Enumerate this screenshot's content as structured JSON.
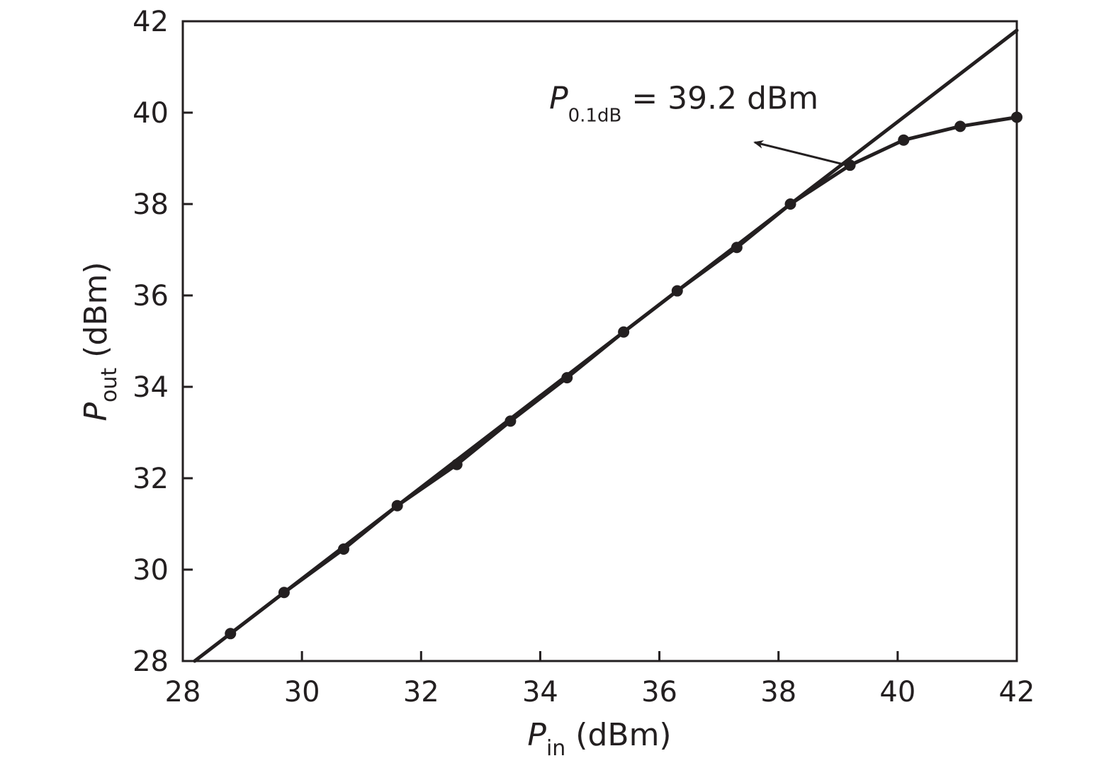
{
  "chart_data": {
    "type": "line",
    "xlabel": {
      "var": "P",
      "sub": "in",
      "unit": " (dBm)"
    },
    "ylabel": {
      "var": "P",
      "sub": "out",
      "unit": " (dBm)"
    },
    "xlim": [
      28,
      42
    ],
    "ylim": [
      28,
      42
    ],
    "xticks": [
      "28",
      "30",
      "32",
      "34",
      "36",
      "38",
      "40",
      "42"
    ],
    "yticks": [
      "28",
      "30",
      "32",
      "34",
      "36",
      "38",
      "40",
      "42"
    ],
    "grid": false,
    "series": [
      {
        "kind": "reference-line",
        "x": [
          28.2,
          42.0
        ],
        "y": [
          28.0,
          41.8
        ]
      },
      {
        "kind": "measured",
        "markers": true,
        "x": [
          28.8,
          29.7,
          30.7,
          31.6,
          32.6,
          33.5,
          34.45,
          35.4,
          36.3,
          37.3,
          38.2,
          39.2,
          40.1,
          41.05,
          42.0
        ],
        "y": [
          28.6,
          29.5,
          30.45,
          31.4,
          32.3,
          33.25,
          34.2,
          35.2,
          36.1,
          37.05,
          38.0,
          38.85,
          39.4,
          39.7,
          39.9
        ]
      }
    ],
    "annotations": [
      {
        "text_var": "P",
        "text_sub": "0.1dB",
        "text_rest": " = 39.2 dBm",
        "text_x": 37.6,
        "text_y": 40.3,
        "arrow_from": [
          39.15,
          38.85
        ],
        "arrow_to": [
          37.6,
          39.35
        ]
      }
    ]
  }
}
